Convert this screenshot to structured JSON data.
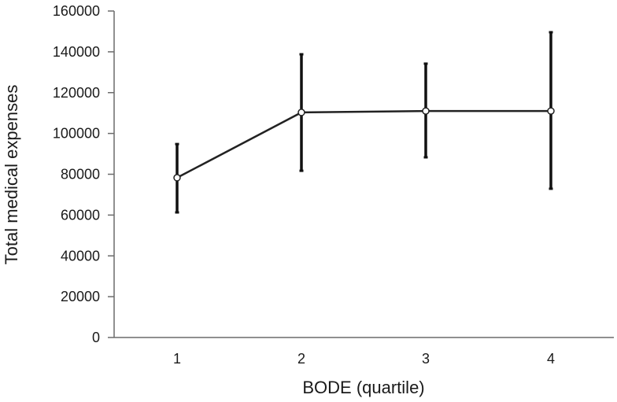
{
  "chart_data": {
    "type": "line",
    "title": "",
    "xlabel": "BODE (quartile)",
    "ylabel": "Total medical expenses",
    "categories": [
      "1",
      "2",
      "3",
      "4"
    ],
    "series": [
      {
        "name": "Total medical expenses",
        "values": [
          78300,
          110300,
          111000,
          111000
        ],
        "error_upper": [
          94800,
          138800,
          134200,
          149600
        ],
        "error_lower": [
          61300,
          81700,
          88300,
          72900
        ],
        "marker": "open-circle",
        "color": "#222222"
      }
    ],
    "ylim": [
      0,
      160000
    ],
    "yticks": [
      0,
      20000,
      40000,
      60000,
      80000,
      100000,
      120000,
      140000,
      160000
    ],
    "grid": false,
    "legend": null
  },
  "colors": {
    "axis": "#6b6b6b",
    "line": "#222222",
    "errorbar": "#111111",
    "marker_fill": "#ffffff"
  }
}
